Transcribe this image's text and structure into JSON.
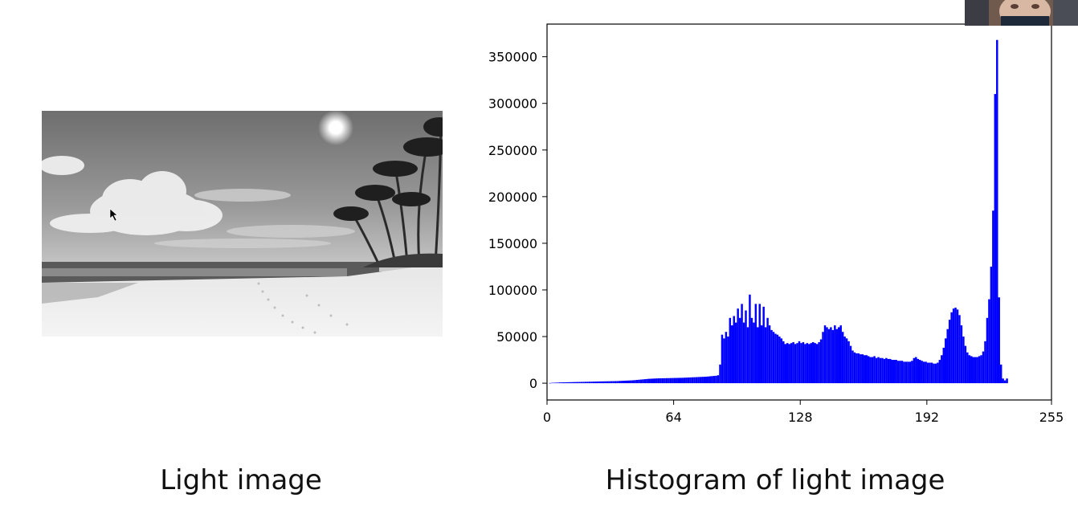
{
  "captions": {
    "left": "Light image",
    "right": "Histogram of light image"
  },
  "photo": {
    "description_icon": "beach-photo-grayscale"
  },
  "chart_data": {
    "type": "bar",
    "title": "",
    "xlabel": "",
    "ylabel": "",
    "xlim": [
      0,
      255
    ],
    "ylim": [
      -18000,
      385000
    ],
    "xticks": [
      0,
      64,
      128,
      192,
      255
    ],
    "yticks": [
      0,
      50000,
      100000,
      150000,
      200000,
      250000,
      300000,
      350000
    ],
    "color": "#0000ff",
    "grid": false,
    "series": [
      {
        "values": [
          0,
          200,
          400,
          500,
          600,
          700,
          800,
          900,
          950,
          1000,
          1050,
          1100,
          1150,
          1200,
          1250,
          1300,
          1350,
          1400,
          1450,
          1500,
          1550,
          1600,
          1650,
          1700,
          1750,
          1800,
          1850,
          1900,
          1950,
          2000,
          2050,
          2100,
          2150,
          2200,
          2250,
          2300,
          2400,
          2500,
          2600,
          2700,
          2800,
          2900,
          3000,
          3100,
          3300,
          3500,
          3700,
          3900,
          4100,
          4300,
          4500,
          4700,
          4800,
          4900,
          5000,
          5100,
          5200,
          5250,
          5300,
          5350,
          5400,
          5450,
          5500,
          5550,
          5600,
          5650,
          5700,
          5750,
          5800,
          5900,
          6000,
          6100,
          6200,
          6300,
          6400,
          6500,
          6600,
          6700,
          6800,
          6900,
          7000,
          7200,
          7400,
          7600,
          7800,
          8000,
          8500,
          20000,
          52000,
          48000,
          55000,
          50000,
          70000,
          62000,
          72000,
          65000,
          80000,
          70000,
          85000,
          65000,
          78000,
          60000,
          95000,
          70000,
          65000,
          85000,
          60000,
          85000,
          62000,
          82000,
          60000,
          70000,
          62000,
          57000,
          55000,
          53000,
          52000,
          50000,
          48000,
          45000,
          42000,
          43000,
          42000,
          43000,
          44000,
          42000,
          43000,
          45000,
          43000,
          44000,
          42000,
          43000,
          42000,
          43000,
          44000,
          43000,
          42000,
          44000,
          47000,
          55000,
          62000,
          60000,
          58000,
          60000,
          57000,
          62000,
          58000,
          60000,
          62000,
          55000,
          50000,
          48000,
          45000,
          40000,
          35000,
          33000,
          32000,
          32000,
          31000,
          31000,
          30000,
          30000,
          29000,
          28000,
          28000,
          29000,
          27000,
          28000,
          27000,
          27000,
          26000,
          27000,
          26000,
          26000,
          25000,
          25000,
          25000,
          24000,
          24000,
          24000,
          23000,
          23000,
          23000,
          23000,
          24000,
          27000,
          28000,
          26000,
          25000,
          24000,
          23000,
          23000,
          22000,
          22000,
          22000,
          21000,
          21000,
          22000,
          25000,
          30000,
          38000,
          48000,
          58000,
          68000,
          76000,
          80000,
          81000,
          79000,
          73000,
          62000,
          50000,
          40000,
          33000,
          30000,
          29000,
          28000,
          28000,
          28000,
          29000,
          30000,
          34000,
          45000,
          70000,
          90000,
          125000,
          185000,
          310000,
          368000,
          92000,
          20000,
          5000,
          3000,
          5000,
          0
        ]
      }
    ]
  }
}
